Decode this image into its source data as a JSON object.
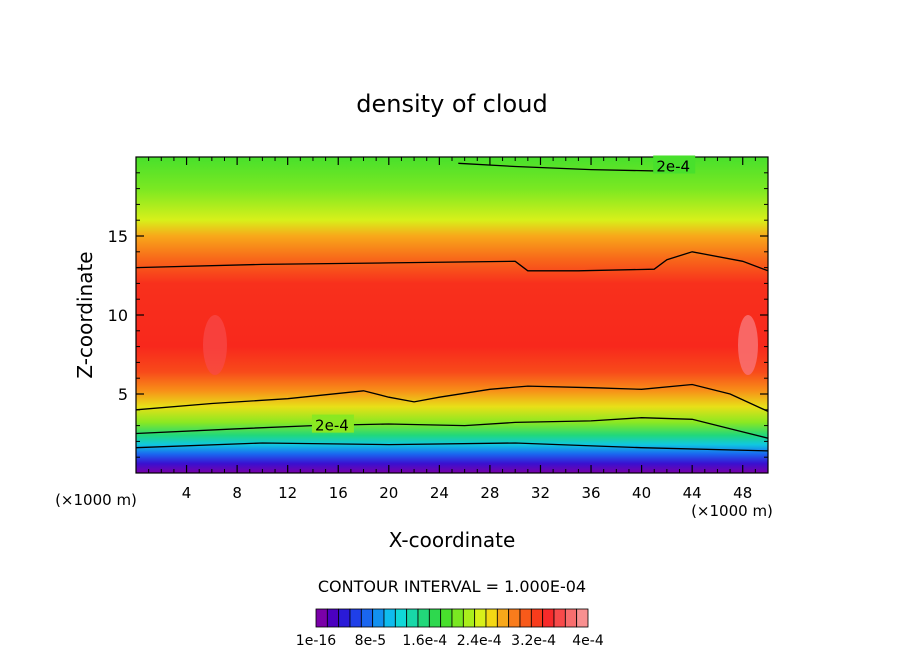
{
  "chart_data": {
    "type": "heatmap",
    "title": "density of cloud",
    "xlabel": "X-coordinate",
    "ylabel": "Z-coordinate",
    "x_unit": "(×1000 m)",
    "x_unit_right": "(×1000 m)",
    "xlim": [
      0,
      50
    ],
    "ylim": [
      0,
      20
    ],
    "x_ticks": [
      4,
      8,
      12,
      16,
      20,
      24,
      28,
      32,
      36,
      40,
      44,
      48
    ],
    "y_ticks": [
      5,
      10,
      15
    ],
    "contour_interval_label": "CONTOUR INTERVAL = 1.000E-04",
    "contour_labels": [
      {
        "text": "2e-4",
        "x": 42.5,
        "z": 19.4
      },
      {
        "text": "2e-4",
        "x": 15.5,
        "z": 3.0
      }
    ],
    "levels": [
      1e-16,
      2e-05,
      4e-05,
      6e-05,
      8e-05,
      0.0001,
      0.00012,
      0.00014,
      0.00016,
      0.00018,
      0.0002,
      0.00022,
      0.00024,
      0.00026,
      0.00028,
      0.0003,
      0.00032,
      0.00034,
      0.00036,
      0.00038,
      0.0004
    ],
    "colorbar_colors": [
      "#7a00a8",
      "#4b00c0",
      "#2a1ad8",
      "#1f3fe8",
      "#1a66f0",
      "#1291f0",
      "#0fbcee",
      "#10d8d8",
      "#18d8a8",
      "#22d87a",
      "#2ed84e",
      "#48e02c",
      "#7ae822",
      "#aaee1c",
      "#d8f01a",
      "#f4d814",
      "#f8a81a",
      "#f87c1c",
      "#f85a1a",
      "#f83c1c",
      "#f82a2a",
      "#f84a4a",
      "#f86e6e",
      "#f89090"
    ],
    "colorbar_labels": [
      "1e-16",
      "8e-5",
      "1.6e-4",
      "2.4e-4",
      "3.2e-4",
      "4e-4"
    ]
  }
}
